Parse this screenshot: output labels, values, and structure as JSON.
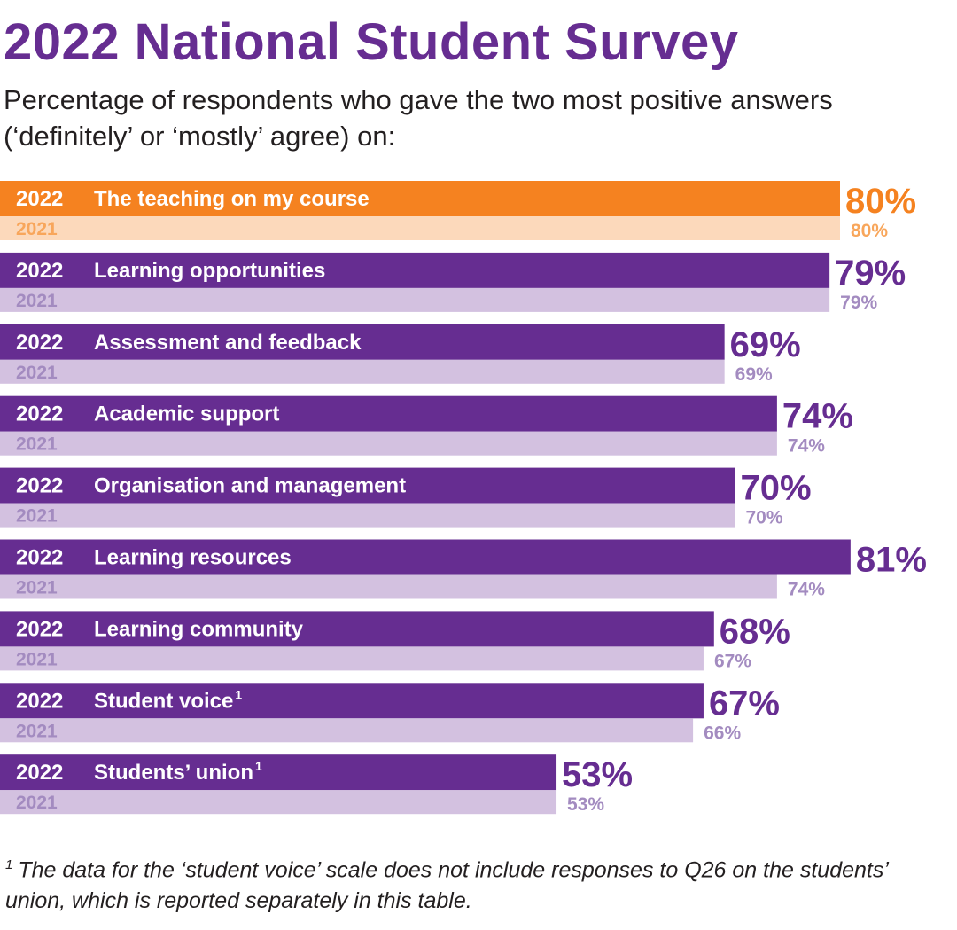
{
  "title": "2022 National Student Survey",
  "subtitle": "Percentage of respondents who gave the two most positive answers (‘definitely’ or ‘mostly’ agree) on:",
  "footnote": {
    "marker": "1",
    "text": "The data for the ‘student voice’ scale does not include responses to Q26 on the students’ union, which is reported separately in this table."
  },
  "colors": {
    "highlight_2022": "#f58220",
    "highlight_2021": "#fcd9bb",
    "highlight_label_2021": "#f8a65b",
    "bar_2022": "#662d91",
    "bar_2021": "#d3c1e0",
    "label_2021": "#a38bc0",
    "label_on_bar": "#ffffff"
  },
  "chart_data": {
    "type": "bar",
    "orientation": "horizontal",
    "xlim": [
      0,
      100
    ],
    "series_labels": [
      "2022",
      "2021"
    ],
    "value_suffix": "%",
    "categories": [
      {
        "name": "The teaching on my course",
        "footnote": "",
        "v2022": 80,
        "v2021": 80,
        "highlight": true
      },
      {
        "name": "Learning opportunities",
        "footnote": "",
        "v2022": 79,
        "v2021": 79,
        "highlight": false
      },
      {
        "name": "Assessment and feedback",
        "footnote": "",
        "v2022": 69,
        "v2021": 69,
        "highlight": false
      },
      {
        "name": "Academic support",
        "footnote": "",
        "v2022": 74,
        "v2021": 74,
        "highlight": false
      },
      {
        "name": "Organisation and management",
        "footnote": "",
        "v2022": 70,
        "v2021": 70,
        "highlight": false
      },
      {
        "name": "Learning resources",
        "footnote": "",
        "v2022": 81,
        "v2021": 74,
        "highlight": false
      },
      {
        "name": "Learning community",
        "footnote": "",
        "v2022": 68,
        "v2021": 67,
        "highlight": false
      },
      {
        "name": "Student voice",
        "footnote": "1",
        "v2022": 67,
        "v2021": 66,
        "highlight": false
      },
      {
        "name": "Students’ union",
        "footnote": "1",
        "v2022": 53,
        "v2021": 53,
        "highlight": false
      }
    ]
  }
}
